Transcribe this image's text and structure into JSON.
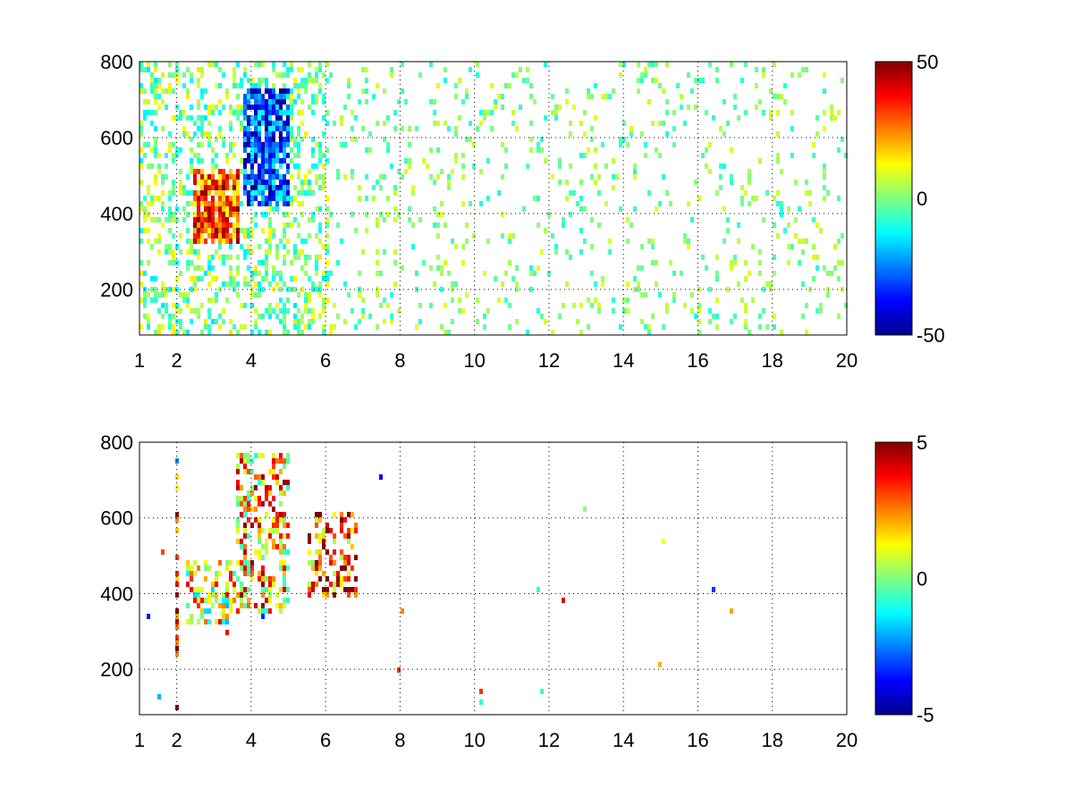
{
  "chart_data": [
    {
      "type": "heatmap",
      "title": "",
      "xlabel": "",
      "ylabel": "",
      "xlim": [
        1,
        20
      ],
      "ylim": [
        80,
        800
      ],
      "x_ticks": [
        1,
        2,
        4,
        6,
        8,
        10,
        12,
        14,
        16,
        18,
        20
      ],
      "x_tick_labels": [
        "1",
        "2",
        "4",
        "6",
        "8",
        "10",
        "12",
        "14",
        "16",
        "18",
        "20"
      ],
      "y_ticks": [
        200,
        400,
        600,
        800
      ],
      "y_tick_labels": [
        "200",
        "400",
        "600",
        "800"
      ],
      "grid": true,
      "colormap": "jet",
      "clim": [
        -50,
        50
      ],
      "colorbar_ticks": [
        -50,
        0,
        50
      ],
      "colorbar_tick_labels": [
        "-50",
        "0",
        "50"
      ],
      "features": [
        {
          "x_range": [
            2.4,
            3.6
          ],
          "y_range": [
            330,
            520
          ],
          "approx_value": 30
        },
        {
          "x_range": [
            3.7,
            5.0
          ],
          "y_range": [
            420,
            740
          ],
          "approx_value": -30
        },
        {
          "x_range": [
            6,
            20
          ],
          "y_range": [
            80,
            800
          ],
          "approx_value": 0
        }
      ]
    },
    {
      "type": "heatmap",
      "title": "",
      "xlabel": "",
      "ylabel": "",
      "xlim": [
        1,
        20
      ],
      "ylim": [
        80,
        800
      ],
      "x_ticks": [
        1,
        2,
        4,
        6,
        8,
        10,
        12,
        14,
        16,
        18,
        20
      ],
      "x_tick_labels": [
        "1",
        "2",
        "4",
        "6",
        "8",
        "10",
        "12",
        "14",
        "16",
        "18",
        "20"
      ],
      "y_ticks": [
        200,
        400,
        600,
        800
      ],
      "y_tick_labels": [
        "200",
        "400",
        "600",
        "800"
      ],
      "grid": true,
      "colormap": "jet",
      "clim": [
        -5,
        5
      ],
      "colorbar_ticks": [
        -5,
        0,
        5
      ],
      "colorbar_tick_labels": [
        "-5",
        "0",
        "5"
      ],
      "features": [
        {
          "x_range": [
            2.2,
            3.5
          ],
          "y_range": [
            330,
            500
          ],
          "approx_value": 1
        },
        {
          "x_range": [
            3.5,
            5.0
          ],
          "y_range": [
            360,
            780
          ],
          "approx_value": 2
        },
        {
          "x_range": [
            5.5,
            6.8
          ],
          "y_range": [
            400,
            620
          ],
          "approx_value": 3
        },
        {
          "x_range": [
            1.95,
            2.05
          ],
          "y_range": [
            80,
            720
          ],
          "approx_value": 4
        }
      ]
    }
  ]
}
